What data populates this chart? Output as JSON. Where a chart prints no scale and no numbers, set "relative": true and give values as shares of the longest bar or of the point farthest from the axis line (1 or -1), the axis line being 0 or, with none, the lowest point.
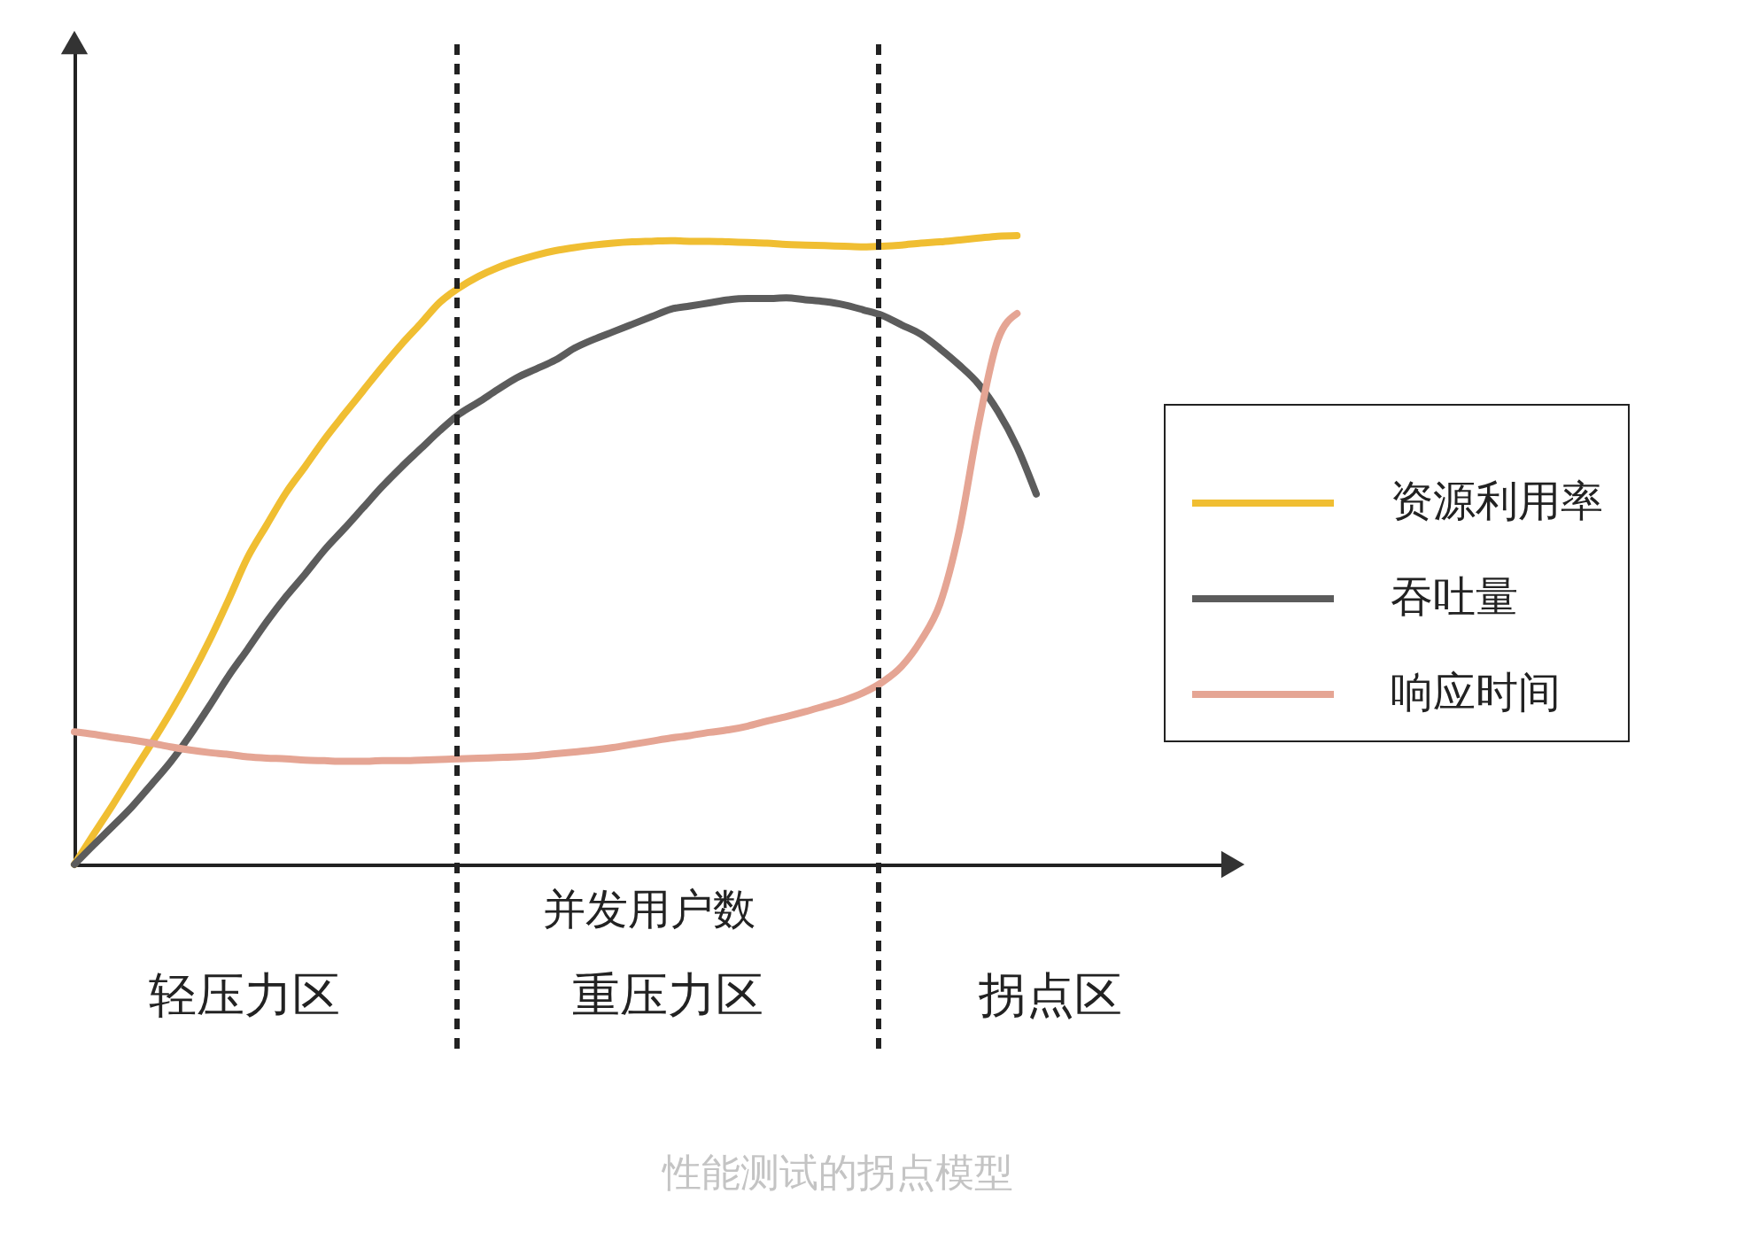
{
  "chart_data": {
    "type": "line",
    "title": "性能测试的拐点模型",
    "xlabel": "并发用户数",
    "relative": true,
    "legend": "right",
    "categories": [
      null,
      null,
      null,
      null,
      null,
      null,
      null,
      null,
      null,
      null,
      null,
      null,
      null,
      null,
      null,
      null,
      null,
      null,
      null,
      null,
      null,
      null,
      null,
      null,
      null,
      null,
      null,
      null,
      null,
      null,
      null,
      null,
      null,
      null,
      null,
      null,
      null,
      null,
      null,
      null,
      null,
      null,
      null,
      null,
      null,
      null,
      null,
      null,
      null,
      null,
      null
    ],
    "series": [
      {
        "name": "资源利用率",
        "color": "#f0be32",
        "values": [
          0,
          0.048,
          0.095,
          0.144,
          0.192,
          0.242,
          0.296,
          0.355,
          0.42,
          0.488,
          0.54,
          0.591,
          0.633,
          0.676,
          0.715,
          0.753,
          0.791,
          0.827,
          0.86,
          0.894,
          0.917,
          0.935,
          0.949,
          0.96,
          0.969,
          0.976,
          0.981,
          0.985,
          0.988,
          0.99,
          0.991,
          0.992,
          0.991,
          0.991,
          0.99,
          0.989,
          0.988,
          0.986,
          0.985,
          0.984,
          0.983,
          0.982,
          0.983,
          0.985,
          0.988,
          0.99,
          0.993,
          0.996,
          0.999,
          1.0,
          null
        ]
      },
      {
        "name": "吞吐量",
        "color": "#5c5c5c",
        "values": [
          0,
          0.031,
          0.061,
          0.092,
          0.127,
          0.163,
          0.205,
          0.251,
          0.299,
          0.342,
          0.386,
          0.426,
          0.462,
          0.5,
          0.533,
          0.567,
          0.601,
          0.632,
          0.661,
          0.69,
          0.716,
          0.735,
          0.755,
          0.774,
          0.788,
          0.802,
          0.821,
          0.835,
          0.847,
          0.859,
          0.871,
          0.883,
          0.888,
          0.893,
          0.898,
          0.9,
          0.9,
          0.901,
          0.898,
          0.895,
          0.89,
          0.882,
          0.873,
          0.858,
          0.843,
          0.82,
          0.794,
          0.764,
          0.721,
          0.664,
          0.589
        ]
      },
      {
        "name": "响应时间",
        "color": "#e5a594",
        "values": [
          0.211,
          0.207,
          0.202,
          0.198,
          0.193,
          0.187,
          0.182,
          0.178,
          0.175,
          0.171,
          0.169,
          0.168,
          0.166,
          0.165,
          0.164,
          0.164,
          0.165,
          0.165,
          0.166,
          0.167,
          0.168,
          0.169,
          0.17,
          0.171,
          0.173,
          0.176,
          0.179,
          0.182,
          0.186,
          0.191,
          0.196,
          0.201,
          0.205,
          0.21,
          0.214,
          0.22,
          0.228,
          0.235,
          0.243,
          0.252,
          0.261,
          0.273,
          0.29,
          0.315,
          0.356,
          0.415,
          0.531,
          0.7,
          0.834,
          0.876,
          null
        ]
      }
    ],
    "annotations": [
      "轻压力区",
      "重压力区",
      "拐点区"
    ]
  }
}
